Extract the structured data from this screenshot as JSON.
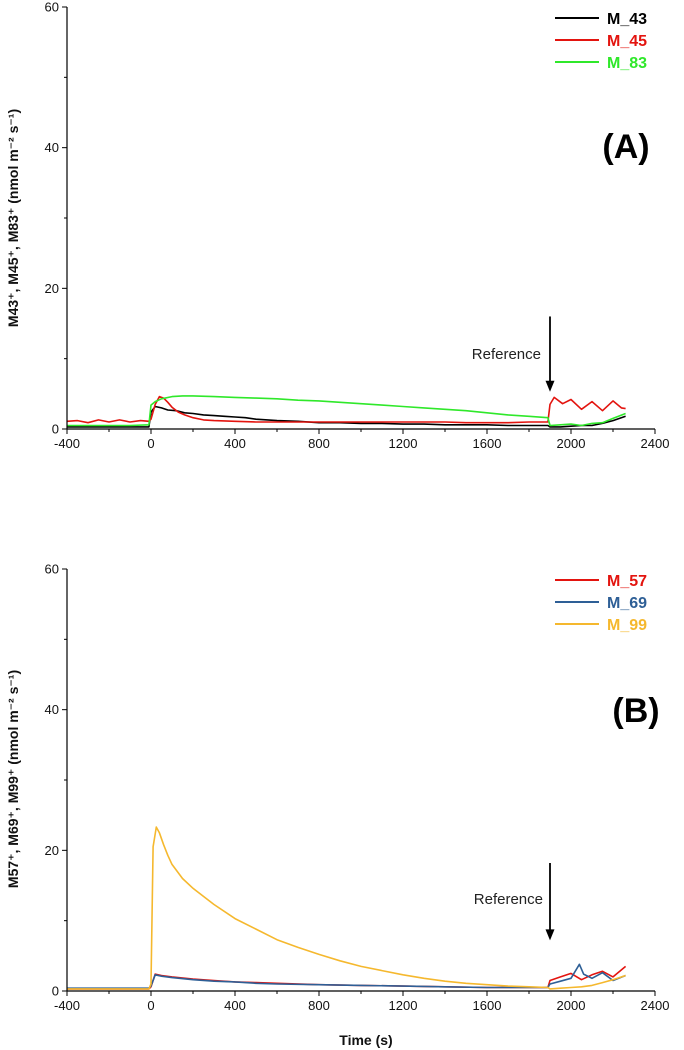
{
  "chart_data": [
    {
      "type": "line",
      "panel_label": "(A)",
      "ylabel": "M43⁺, M45⁺, M83⁺ (nmol m⁻² s⁻¹)",
      "xlabel": "",
      "xlim": [
        -400,
        2400
      ],
      "ylim": [
        0,
        60
      ],
      "xticks": [
        "-400",
        "0",
        "400",
        "800",
        "1200",
        "1600",
        "2000",
        "2400"
      ],
      "yticks": [
        "0",
        "20",
        "40",
        "60"
      ],
      "grid": false,
      "legend_position": "top-right",
      "annotation": {
        "text": "Reference",
        "x": 1900,
        "arrow_from_y": 16,
        "arrow_to_y": 5.3
      },
      "series": [
        {
          "name": "M_43",
          "color": "#000000",
          "x": [
            -400,
            -300,
            -200,
            -100,
            -10,
            0,
            20,
            50,
            80,
            120,
            160,
            200,
            250,
            300,
            350,
            400,
            450,
            500,
            600,
            700,
            800,
            900,
            1000,
            1100,
            1200,
            1300,
            1400,
            1500,
            1600,
            1700,
            1800,
            1890,
            1900,
            1950,
            2000,
            2050,
            2100,
            2150,
            2200,
            2260
          ],
          "y": [
            0.3,
            0.3,
            0.3,
            0.3,
            0.3,
            2.4,
            3.2,
            3.0,
            2.7,
            2.6,
            2.3,
            2.2,
            2.0,
            1.9,
            1.8,
            1.7,
            1.6,
            1.4,
            1.2,
            1.1,
            0.9,
            0.9,
            0.8,
            0.8,
            0.7,
            0.7,
            0.6,
            0.6,
            0.6,
            0.5,
            0.5,
            0.5,
            0.3,
            0.3,
            0.4,
            0.5,
            0.5,
            0.8,
            1.2,
            1.8
          ]
        },
        {
          "name": "M_45",
          "color": "#e3140f",
          "x": [
            -400,
            -350,
            -300,
            -250,
            -200,
            -150,
            -100,
            -50,
            -10,
            0,
            20,
            40,
            60,
            80,
            100,
            130,
            160,
            200,
            250,
            300,
            400,
            500,
            600,
            700,
            800,
            900,
            1000,
            1100,
            1200,
            1300,
            1400,
            1500,
            1600,
            1700,
            1800,
            1890,
            1900,
            1920,
            1960,
            2000,
            2050,
            2100,
            2150,
            2200,
            2240,
            2260
          ],
          "y": [
            1.1,
            1.2,
            0.9,
            1.3,
            1.0,
            1.3,
            1.0,
            1.2,
            1.1,
            1.4,
            3.5,
            4.6,
            4.4,
            3.8,
            3.1,
            2.4,
            2.0,
            1.6,
            1.3,
            1.2,
            1.1,
            1.0,
            1.0,
            1.0,
            1.0,
            1.0,
            1.0,
            1.0,
            1.0,
            1.0,
            1.0,
            0.9,
            0.9,
            0.9,
            1.0,
            1.0,
            3.5,
            4.5,
            3.6,
            4.2,
            2.8,
            3.9,
            2.6,
            4.0,
            3.0,
            2.9
          ]
        },
        {
          "name": "M_83",
          "color": "#2fe82a",
          "x": [
            -400,
            -300,
            -200,
            -100,
            -10,
            0,
            20,
            50,
            100,
            150,
            200,
            300,
            400,
            500,
            600,
            700,
            800,
            900,
            1000,
            1100,
            1200,
            1300,
            1400,
            1500,
            1600,
            1700,
            1800,
            1890,
            1900,
            1950,
            2000,
            2050,
            2100,
            2150,
            2200,
            2260
          ],
          "y": [
            0.5,
            0.5,
            0.5,
            0.5,
            0.6,
            3.4,
            3.9,
            4.3,
            4.6,
            4.7,
            4.7,
            4.6,
            4.5,
            4.4,
            4.3,
            4.1,
            4.0,
            3.8,
            3.6,
            3.4,
            3.2,
            3.0,
            2.8,
            2.6,
            2.3,
            2.0,
            1.8,
            1.6,
            0.5,
            0.6,
            0.7,
            0.5,
            0.8,
            0.9,
            1.5,
            2.2
          ]
        }
      ]
    },
    {
      "type": "line",
      "panel_label": "(B)",
      "ylabel": "M57⁺, M69⁺, M99⁺ (nmol m⁻² s⁻¹)",
      "xlabel": "Time (s)",
      "xlim": [
        -400,
        2400
      ],
      "ylim": [
        0,
        60
      ],
      "xticks": [
        "-400",
        "0",
        "400",
        "800",
        "1200",
        "1600",
        "2000",
        "2400"
      ],
      "yticks": [
        "0",
        "20",
        "40",
        "60"
      ],
      "grid": false,
      "legend_position": "top-right",
      "annotation": {
        "text": "Reference",
        "x": 1900,
        "arrow_from_y": 18.2,
        "arrow_to_y": 7.2
      },
      "series": [
        {
          "name": "M_57",
          "color": "#e3140f",
          "x": [
            -400,
            -300,
            -200,
            -100,
            -10,
            0,
            20,
            50,
            100,
            200,
            300,
            400,
            500,
            600,
            800,
            1000,
            1200,
            1400,
            1600,
            1800,
            1890,
            1900,
            1950,
            2000,
            2050,
            2100,
            2150,
            2200,
            2260
          ],
          "y": [
            0.3,
            0.3,
            0.3,
            0.3,
            0.3,
            0.6,
            2.4,
            2.2,
            2.0,
            1.7,
            1.5,
            1.3,
            1.2,
            1.1,
            0.9,
            0.8,
            0.7,
            0.6,
            0.5,
            0.5,
            0.5,
            1.5,
            2.0,
            2.5,
            1.6,
            2.3,
            2.8,
            2.0,
            3.5
          ]
        },
        {
          "name": "M_69",
          "color": "#2e5f96",
          "x": [
            -400,
            -300,
            -200,
            -100,
            -10,
            0,
            20,
            50,
            100,
            200,
            300,
            400,
            500,
            600,
            800,
            1000,
            1200,
            1400,
            1600,
            1800,
            1890,
            1900,
            1950,
            2000,
            2040,
            2060,
            2100,
            2150,
            2200,
            2260
          ],
          "y": [
            0.4,
            0.4,
            0.4,
            0.4,
            0.4,
            0.7,
            2.3,
            2.1,
            1.9,
            1.6,
            1.4,
            1.3,
            1.1,
            1.0,
            0.9,
            0.8,
            0.7,
            0.6,
            0.5,
            0.5,
            0.5,
            1.0,
            1.4,
            1.8,
            3.8,
            2.4,
            1.8,
            2.6,
            1.5,
            2.2
          ]
        },
        {
          "name": "M_99",
          "color": "#f5b82e",
          "x": [
            -400,
            -300,
            -200,
            -100,
            -10,
            0,
            10,
            25,
            40,
            60,
            80,
            100,
            150,
            200,
            300,
            400,
            500,
            600,
            700,
            800,
            900,
            1000,
            1100,
            1200,
            1300,
            1400,
            1500,
            1600,
            1700,
            1800,
            1890,
            1900,
            1950,
            2000,
            2050,
            2100,
            2150,
            2200,
            2260
          ],
          "y": [
            0.3,
            0.3,
            0.3,
            0.3,
            0.3,
            1.0,
            20.5,
            23.3,
            22.5,
            20.8,
            19.3,
            18.0,
            16.0,
            14.6,
            12.3,
            10.3,
            8.8,
            7.3,
            6.2,
            5.2,
            4.3,
            3.5,
            2.9,
            2.3,
            1.8,
            1.4,
            1.1,
            0.9,
            0.7,
            0.6,
            0.5,
            0.3,
            0.4,
            0.5,
            0.6,
            0.8,
            1.2,
            1.6,
            2.2
          ]
        }
      ]
    }
  ]
}
